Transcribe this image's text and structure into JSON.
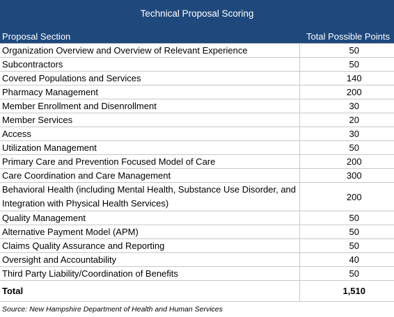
{
  "header": {
    "title": "Technical Proposal Scoring",
    "columns": [
      "Proposal Section",
      "Total Possible Points"
    ]
  },
  "table": {
    "rows": [
      [
        "Organization Overview and Overview of Relevant Experience",
        "50"
      ],
      [
        "Subcontractors",
        "50"
      ],
      [
        "Covered Populations and Services",
        "140"
      ],
      [
        "Pharmacy Management",
        "200"
      ],
      [
        "Member Enrollment and Disenrollment",
        "30"
      ],
      [
        "Member Services",
        "20"
      ],
      [
        "Access",
        "30"
      ],
      [
        "Utilization Management",
        "50"
      ],
      [
        "Primary Care and Prevention Focused Model of Care",
        "200"
      ],
      [
        "Care Coordination and Care Management",
        "300"
      ],
      [
        "Behavioral Health (including Mental Health, Substance Use Disorder, and Integration with Physical Health Services)",
        "200"
      ],
      [
        "Quality Management",
        "50"
      ],
      [
        "Alternative Payment Model (APM)",
        "50"
      ],
      [
        "Claims Quality Assurance and Reporting",
        "50"
      ],
      [
        "Oversight and Accountability",
        "40"
      ],
      [
        "Third Party Liability/Coordination of Benefits",
        "50"
      ]
    ],
    "total": [
      "Total",
      "1,510"
    ]
  },
  "source": "Source: New Hampshire Department of Health and Human Services"
}
